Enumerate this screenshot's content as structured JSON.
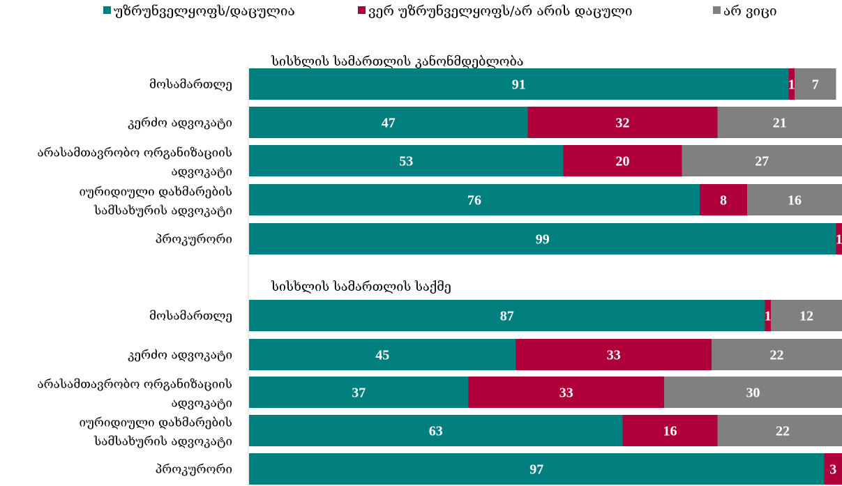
{
  "chart_data": {
    "type": "bar",
    "orientation": "horizontal",
    "stacked": true,
    "legend_position": "top",
    "grid": false,
    "xlim": [
      0,
      100
    ],
    "legend": [
      {
        "name": "უზრუნველყოფს/დაცულია",
        "color": "#007F7F"
      },
      {
        "name": "ვერ უზრუნველყოფს/არ არის დაცული",
        "color": "#B0003A"
      },
      {
        "name": "არ ვიცი",
        "color": "#808080"
      }
    ],
    "groups": [
      {
        "title": "სისხლის სამართლის კანონმდებლობა",
        "categories": [
          {
            "label": [
              "მოსამართლე"
            ],
            "values": [
              91,
              1,
              7
            ]
          },
          {
            "label": [
              "კერძო ადვოკატი"
            ],
            "values": [
              47,
              32,
              21
            ]
          },
          {
            "label": [
              "არასამთავრობო ორგანიზაციის",
              "ადვოკატი"
            ],
            "values": [
              53,
              20,
              27
            ]
          },
          {
            "label": [
              "იურიდიული დახმარების",
              "სამსახურის ადვოკატი"
            ],
            "values": [
              76,
              8,
              16
            ]
          },
          {
            "label": [
              "პროკურორი"
            ],
            "values": [
              99,
              1,
              0
            ]
          }
        ]
      },
      {
        "title": "სისხლის სამართლის საქმე",
        "categories": [
          {
            "label": [
              "მოსამართლე"
            ],
            "values": [
              87,
              1,
              12
            ]
          },
          {
            "label": [
              "კერძო ადვოკატი"
            ],
            "values": [
              45,
              33,
              22
            ]
          },
          {
            "label": [
              "არასამთავრობო ორგანიზაციის",
              "ადვოკატი"
            ],
            "values": [
              37,
              33,
              30
            ]
          },
          {
            "label": [
              "იურიდიული დახმარების",
              "სამსახურის ადვოკატი"
            ],
            "values": [
              63,
              16,
              22
            ]
          },
          {
            "label": [
              "პროკურორი"
            ],
            "values": [
              97,
              3,
              0
            ]
          }
        ]
      }
    ]
  }
}
